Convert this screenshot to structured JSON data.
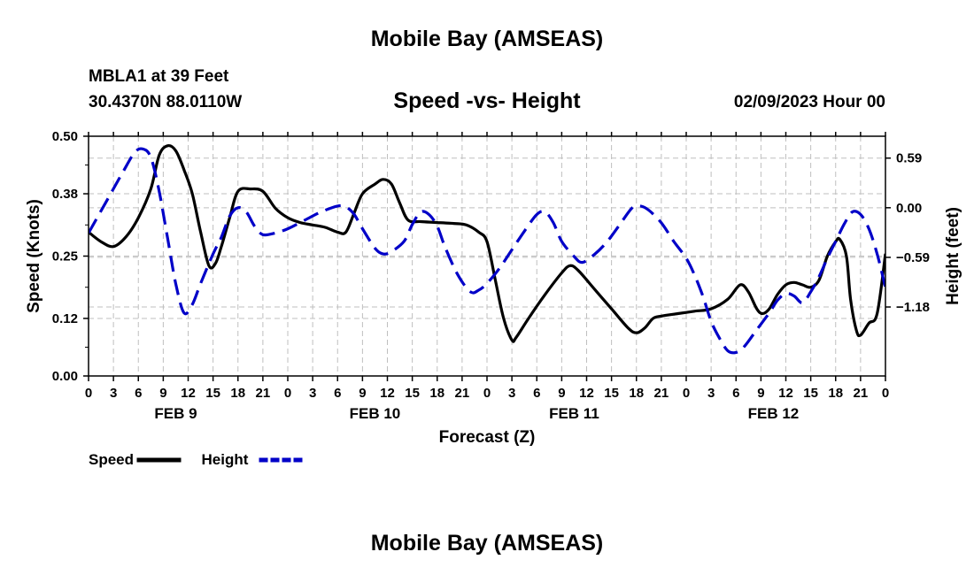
{
  "header": {
    "title": "Mobile Bay (AMSEAS)",
    "station": "MBLA1 at 39 Feet",
    "coords": "30.4370N  88.0110W",
    "subtitle": "Speed -vs- Height",
    "date": "02/09/2023 Hour 00",
    "footer_title": "Mobile Bay (AMSEAS)"
  },
  "chart_data": {
    "type": "line",
    "xlabel": "Forecast (Z)",
    "ylabel_left": "Speed (Knots)",
    "ylabel_right": "Height (feet)",
    "x_hours_range": [
      0,
      96
    ],
    "x_tick_labels": [
      "0",
      "3",
      "6",
      "9",
      "12",
      "15",
      "18",
      "21",
      "0",
      "3",
      "6",
      "9",
      "12",
      "15",
      "18",
      "21",
      "0",
      "3",
      "6",
      "9",
      "12",
      "15",
      "18",
      "21",
      "0",
      "3",
      "6",
      "9",
      "12",
      "15",
      "18",
      "21",
      "0"
    ],
    "day_labels": [
      {
        "label": "FEB 9",
        "hour": 10.5
      },
      {
        "label": "FEB 10",
        "hour": 34.5
      },
      {
        "label": "FEB 11",
        "hour": 58.5
      },
      {
        "label": "FEB 12",
        "hour": 82.5
      }
    ],
    "left_axis": {
      "min": 0.0,
      "max": 0.5,
      "ticks": [
        0.0,
        0.12,
        0.25,
        0.38,
        0.5
      ],
      "tick_labels": [
        "0.00",
        "0.12",
        "0.25",
        "0.38",
        "0.50"
      ]
    },
    "right_axis": {
      "min": -2.0,
      "max": 0.85,
      "ticks": [
        0.59,
        0.0,
        -0.59,
        -1.18
      ],
      "tick_labels": [
        "0.59",
        "0.00",
        "−0.59",
        "−1.18"
      ]
    },
    "series": [
      {
        "name": "Speed",
        "axis": "left",
        "color": "#000000",
        "dash": "solid",
        "points": [
          [
            0,
            0.3
          ],
          [
            1.5,
            0.28
          ],
          [
            3,
            0.27
          ],
          [
            4.5,
            0.29
          ],
          [
            6,
            0.33
          ],
          [
            7.5,
            0.39
          ],
          [
            8.5,
            0.46
          ],
          [
            9.5,
            0.48
          ],
          [
            10.5,
            0.47
          ],
          [
            11.5,
            0.43
          ],
          [
            12.5,
            0.38
          ],
          [
            13.5,
            0.3
          ],
          [
            14.5,
            0.23
          ],
          [
            15.3,
            0.235
          ],
          [
            16,
            0.27
          ],
          [
            17,
            0.33
          ],
          [
            18,
            0.385
          ],
          [
            19.5,
            0.39
          ],
          [
            21,
            0.385
          ],
          [
            22.5,
            0.35
          ],
          [
            24,
            0.33
          ],
          [
            25.5,
            0.32
          ],
          [
            27,
            0.315
          ],
          [
            28.5,
            0.31
          ],
          [
            30,
            0.3
          ],
          [
            31,
            0.3
          ],
          [
            32,
            0.34
          ],
          [
            33,
            0.38
          ],
          [
            34.5,
            0.4
          ],
          [
            35.5,
            0.41
          ],
          [
            36.5,
            0.4
          ],
          [
            37.5,
            0.36
          ],
          [
            38.5,
            0.325
          ],
          [
            40,
            0.322
          ],
          [
            42,
            0.32
          ],
          [
            44,
            0.318
          ],
          [
            45.5,
            0.315
          ],
          [
            47,
            0.3
          ],
          [
            48,
            0.28
          ],
          [
            49,
            0.2
          ],
          [
            50,
            0.12
          ],
          [
            51,
            0.075
          ],
          [
            51.5,
            0.08
          ],
          [
            53,
            0.12
          ],
          [
            55,
            0.17
          ],
          [
            57,
            0.215
          ],
          [
            58,
            0.23
          ],
          [
            59,
            0.22
          ],
          [
            61,
            0.18
          ],
          [
            63,
            0.14
          ],
          [
            65,
            0.1
          ],
          [
            66,
            0.09
          ],
          [
            67,
            0.1
          ],
          [
            68,
            0.12
          ],
          [
            69,
            0.125
          ],
          [
            71,
            0.13
          ],
          [
            73,
            0.135
          ],
          [
            75,
            0.14
          ],
          [
            77,
            0.16
          ],
          [
            78.5,
            0.19
          ],
          [
            79.5,
            0.175
          ],
          [
            80.5,
            0.14
          ],
          [
            81.2,
            0.13
          ],
          [
            82,
            0.14
          ],
          [
            83,
            0.17
          ],
          [
            84,
            0.19
          ],
          [
            85,
            0.195
          ],
          [
            86,
            0.19
          ],
          [
            87,
            0.185
          ],
          [
            88,
            0.2
          ],
          [
            89,
            0.25
          ],
          [
            90,
            0.28
          ],
          [
            90.5,
            0.285
          ],
          [
            91.3,
            0.25
          ],
          [
            91.8,
            0.16
          ],
          [
            92.5,
            0.095
          ],
          [
            93,
            0.085
          ],
          [
            94,
            0.11
          ],
          [
            95,
            0.13
          ],
          [
            96,
            0.255
          ]
        ]
      },
      {
        "name": "Height",
        "axis": "right",
        "color": "#0000c8",
        "dash": "dashed",
        "points": [
          [
            0,
            -0.3
          ],
          [
            2,
            0.05
          ],
          [
            4,
            0.4
          ],
          [
            5.5,
            0.65
          ],
          [
            6.5,
            0.7
          ],
          [
            7.5,
            0.6
          ],
          [
            8.5,
            0.2
          ],
          [
            9.5,
            -0.35
          ],
          [
            10.5,
            -0.9
          ],
          [
            11.5,
            -1.25
          ],
          [
            12.5,
            -1.15
          ],
          [
            13.5,
            -0.9
          ],
          [
            15,
            -0.55
          ],
          [
            16,
            -0.35
          ],
          [
            17,
            -0.1
          ],
          [
            18,
            0.0
          ],
          [
            19,
            -0.05
          ],
          [
            20,
            -0.22
          ],
          [
            21,
            -0.32
          ],
          [
            22.5,
            -0.3
          ],
          [
            24,
            -0.25
          ],
          [
            26,
            -0.15
          ],
          [
            28,
            -0.05
          ],
          [
            30,
            0.02
          ],
          [
            31,
            0.01
          ],
          [
            32,
            -0.08
          ],
          [
            33,
            -0.25
          ],
          [
            34.5,
            -0.48
          ],
          [
            35.5,
            -0.55
          ],
          [
            36.5,
            -0.52
          ],
          [
            38,
            -0.4
          ],
          [
            39,
            -0.2
          ],
          [
            40,
            -0.05
          ],
          [
            41,
            -0.08
          ],
          [
            42,
            -0.22
          ],
          [
            43,
            -0.48
          ],
          [
            44.5,
            -0.8
          ],
          [
            46,
            -1.0
          ],
          [
            47,
            -0.98
          ],
          [
            48,
            -0.9
          ],
          [
            49.5,
            -0.72
          ],
          [
            51,
            -0.5
          ],
          [
            52.5,
            -0.28
          ],
          [
            54,
            -0.08
          ],
          [
            55,
            -0.05
          ],
          [
            56,
            -0.18
          ],
          [
            57,
            -0.4
          ],
          [
            58.5,
            -0.58
          ],
          [
            59.5,
            -0.65
          ],
          [
            61,
            -0.55
          ],
          [
            62.5,
            -0.4
          ],
          [
            64,
            -0.2
          ],
          [
            65.5,
            0.0
          ],
          [
            66.5,
            0.02
          ],
          [
            67.5,
            -0.03
          ],
          [
            69,
            -0.18
          ],
          [
            70.5,
            -0.4
          ],
          [
            72,
            -0.6
          ],
          [
            73,
            -0.8
          ],
          [
            74,
            -1.05
          ],
          [
            75,
            -1.35
          ],
          [
            76,
            -1.55
          ],
          [
            77,
            -1.7
          ],
          [
            78,
            -1.72
          ],
          [
            79,
            -1.65
          ],
          [
            80.5,
            -1.45
          ],
          [
            82,
            -1.25
          ],
          [
            83,
            -1.1
          ],
          [
            84,
            -1.02
          ],
          [
            85,
            -1.05
          ],
          [
            86,
            -1.13
          ],
          [
            87,
            -1.0
          ],
          [
            88,
            -0.82
          ],
          [
            89,
            -0.6
          ],
          [
            90,
            -0.4
          ],
          [
            91,
            -0.2
          ],
          [
            92,
            -0.05
          ],
          [
            93,
            -0.08
          ],
          [
            94,
            -0.25
          ],
          [
            95,
            -0.55
          ],
          [
            96,
            -0.95
          ]
        ]
      }
    ],
    "legend": [
      {
        "label": "Speed",
        "color": "#000000",
        "dash": "solid"
      },
      {
        "label": "Height",
        "color": "#0000c8",
        "dash": "dashed"
      }
    ]
  }
}
